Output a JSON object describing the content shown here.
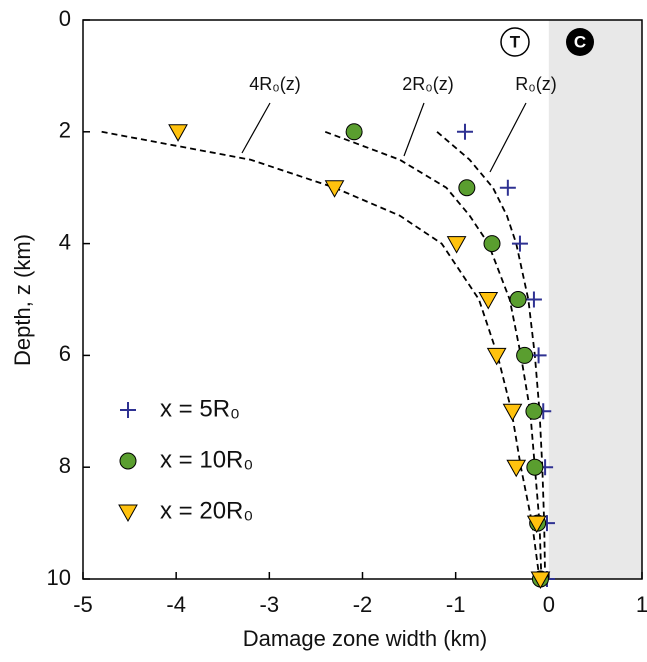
{
  "chart_data": {
    "type": "scatter",
    "xlabel": "Damage zone width (km)",
    "ylabel": "Depth, z (km)",
    "xlim": [
      -5,
      1
    ],
    "ylim": [
      0,
      10
    ],
    "y_inverted": true,
    "xticks": [
      -5,
      -4,
      -3,
      -2,
      -1,
      0,
      1
    ],
    "yticks": [
      0,
      2,
      4,
      6,
      8,
      10
    ],
    "legend": "lower left",
    "shade": {
      "xlim": [
        0,
        1
      ],
      "color": "#e8e8e8"
    },
    "region_labels": [
      "T",
      "C"
    ],
    "series": [
      {
        "name": "x = 5R₀",
        "marker": "plus",
        "color": "#2e3192",
        "x": [
          -0.9,
          -0.44,
          -0.31,
          -0.16,
          -0.11,
          -0.06,
          -0.04,
          -0.02,
          -0.02
        ],
        "y": [
          2,
          3,
          4,
          5,
          6,
          7,
          8,
          9,
          10
        ]
      },
      {
        "name": "x = 10R₀",
        "marker": "circle",
        "color": "#5a9e2f",
        "x": [
          -2.09,
          -0.88,
          -0.61,
          -0.33,
          -0.26,
          -0.16,
          -0.15,
          -0.12,
          -0.09
        ],
        "y": [
          2,
          3,
          4,
          5,
          6,
          7,
          8,
          9,
          10
        ]
      },
      {
        "name": "x = 20R₀",
        "marker": "triangle-down",
        "color": "#ffc20e",
        "x": [
          -3.98,
          -2.3,
          -0.99,
          -0.65,
          -0.56,
          -0.39,
          -0.35,
          -0.13,
          -0.09
        ],
        "y": [
          2,
          3,
          4,
          5,
          6,
          7,
          8,
          9,
          10
        ]
      }
    ],
    "curves": [
      {
        "name": "4R₀(z)",
        "x": [
          -4.8,
          -3.2,
          -2.3,
          -1.6,
          -1.15,
          -0.75,
          -0.55,
          -0.4,
          -0.3,
          -0.18,
          -0.1
        ],
        "y": [
          2,
          2.5,
          3,
          3.5,
          4,
          5,
          6,
          7,
          8,
          9,
          10
        ]
      },
      {
        "name": "2R₀(z)",
        "x": [
          -2.4,
          -1.6,
          -1.1,
          -0.85,
          -0.65,
          -0.42,
          -0.3,
          -0.2,
          -0.15,
          -0.1,
          -0.08
        ],
        "y": [
          2,
          2.5,
          3,
          3.5,
          4,
          5,
          6,
          7,
          8,
          9,
          10
        ]
      },
      {
        "name": "R₀(z)",
        "x": [
          -1.2,
          -0.85,
          -0.6,
          -0.45,
          -0.35,
          -0.22,
          -0.15,
          -0.1,
          -0.07,
          -0.05,
          -0.04
        ],
        "y": [
          2,
          2.5,
          3,
          3.5,
          4,
          5,
          6,
          7,
          8,
          9,
          10
        ]
      }
    ]
  }
}
